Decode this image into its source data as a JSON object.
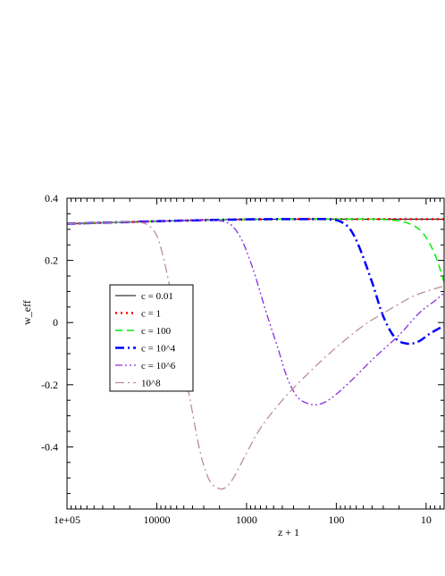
{
  "chart_data": {
    "type": "line",
    "xlabel": "z + 1",
    "ylabel": "w_eff",
    "x_scale": "log",
    "x_reversed": true,
    "xlim": [
      100000,
      6.3
    ],
    "ylim": [
      -0.6,
      0.4
    ],
    "x_ticks": [
      {
        "value": 100000,
        "label": "1e+05"
      },
      {
        "value": 10000,
        "label": "10000"
      },
      {
        "value": 1000,
        "label": "1000"
      },
      {
        "value": 100,
        "label": "100"
      },
      {
        "value": 10,
        "label": "10"
      }
    ],
    "y_ticks": [
      {
        "value": 0.4,
        "label": "0.4"
      },
      {
        "value": 0.2,
        "label": "0.2"
      },
      {
        "value": 0,
        "label": "0"
      },
      {
        "value": -0.2,
        "label": "-0.2"
      },
      {
        "value": -0.4,
        "label": "-0.4"
      }
    ],
    "legend_position": "center-left",
    "series": [
      {
        "name": "c = 0.01",
        "color": "#000000",
        "dash": "solid",
        "width": 1,
        "points": [
          [
            100000,
            0.318
          ],
          [
            30000,
            0.322
          ],
          [
            10000,
            0.326
          ],
          [
            3000,
            0.33
          ],
          [
            1000,
            0.332
          ],
          [
            300,
            0.333
          ],
          [
            100,
            0.333
          ],
          [
            30,
            0.333
          ],
          [
            10,
            0.333
          ],
          [
            6.3,
            0.333
          ]
        ]
      },
      {
        "name": "c = 1",
        "color": "#ff0000",
        "dash": "dotted",
        "width": 2.5,
        "points": [
          [
            100000,
            0.318
          ],
          [
            30000,
            0.322
          ],
          [
            10000,
            0.326
          ],
          [
            3000,
            0.33
          ],
          [
            1000,
            0.332
          ],
          [
            300,
            0.333
          ],
          [
            100,
            0.333
          ],
          [
            30,
            0.333
          ],
          [
            10,
            0.333
          ],
          [
            6.3,
            0.333
          ]
        ]
      },
      {
        "name": "c = 100",
        "color": "#00ee00",
        "dash": "dashed",
        "width": 1.5,
        "points": [
          [
            100000,
            0.318
          ],
          [
            10000,
            0.326
          ],
          [
            1000,
            0.332
          ],
          [
            100,
            0.333
          ],
          [
            40,
            0.333
          ],
          [
            25,
            0.33
          ],
          [
            16,
            0.32
          ],
          [
            11,
            0.29
          ],
          [
            8,
            0.22
          ],
          [
            6.3,
            0.13
          ]
        ]
      },
      {
        "name": "c = 10^4",
        "color": "#0000ff",
        "dash": "dashdot",
        "width": 2.5,
        "points": [
          [
            100000,
            0.318
          ],
          [
            10000,
            0.326
          ],
          [
            1000,
            0.332
          ],
          [
            200,
            0.333
          ],
          [
            120,
            0.332
          ],
          [
            90,
            0.325
          ],
          [
            70,
            0.3
          ],
          [
            55,
            0.24
          ],
          [
            40,
            0.13
          ],
          [
            30,
            0.02
          ],
          [
            22,
            -0.05
          ],
          [
            16,
            -0.068
          ],
          [
            12,
            -0.06
          ],
          [
            9,
            -0.035
          ],
          [
            6.3,
            -0.01
          ]
        ]
      },
      {
        "name": "c = 10^6",
        "color": "#8a2be2",
        "dash": "dashdotdot",
        "width": 1.3,
        "points": [
          [
            100000,
            0.318
          ],
          [
            10000,
            0.326
          ],
          [
            5000,
            0.328
          ],
          [
            3000,
            0.33
          ],
          [
            2000,
            0.328
          ],
          [
            1500,
            0.315
          ],
          [
            1200,
            0.28
          ],
          [
            1000,
            0.23
          ],
          [
            800,
            0.15
          ],
          [
            600,
            0.03
          ],
          [
            450,
            -0.08
          ],
          [
            350,
            -0.18
          ],
          [
            270,
            -0.24
          ],
          [
            200,
            -0.262
          ],
          [
            150,
            -0.262
          ],
          [
            110,
            -0.24
          ],
          [
            70,
            -0.19
          ],
          [
            40,
            -0.12
          ],
          [
            20,
            -0.04
          ],
          [
            12,
            0.03
          ],
          [
            8,
            0.07
          ],
          [
            6.3,
            0.095
          ]
        ]
      },
      {
        "name": "10^8",
        "color": "#bc8f8f",
        "dash": "dashdot",
        "width": 1.3,
        "points": [
          [
            100000,
            0.318
          ],
          [
            30000,
            0.322
          ],
          [
            20000,
            0.325
          ],
          [
            15000,
            0.322
          ],
          [
            12000,
            0.31
          ],
          [
            10000,
            0.28
          ],
          [
            9000,
            0.24
          ],
          [
            8000,
            0.18
          ],
          [
            7000,
            0.1
          ],
          [
            6000,
            -0.01
          ],
          [
            5000,
            -0.14
          ],
          [
            4000,
            -0.29
          ],
          [
            3500,
            -0.38
          ],
          [
            3000,
            -0.46
          ],
          [
            2500,
            -0.515
          ],
          [
            2000,
            -0.535
          ],
          [
            1700,
            -0.53
          ],
          [
            1400,
            -0.5
          ],
          [
            1000,
            -0.42
          ],
          [
            700,
            -0.34
          ],
          [
            400,
            -0.25
          ],
          [
            200,
            -0.16
          ],
          [
            100,
            -0.08
          ],
          [
            50,
            -0.01
          ],
          [
            30,
            0.03
          ],
          [
            15,
            0.08
          ],
          [
            10,
            0.1
          ],
          [
            6.3,
            0.118
          ]
        ]
      }
    ]
  }
}
